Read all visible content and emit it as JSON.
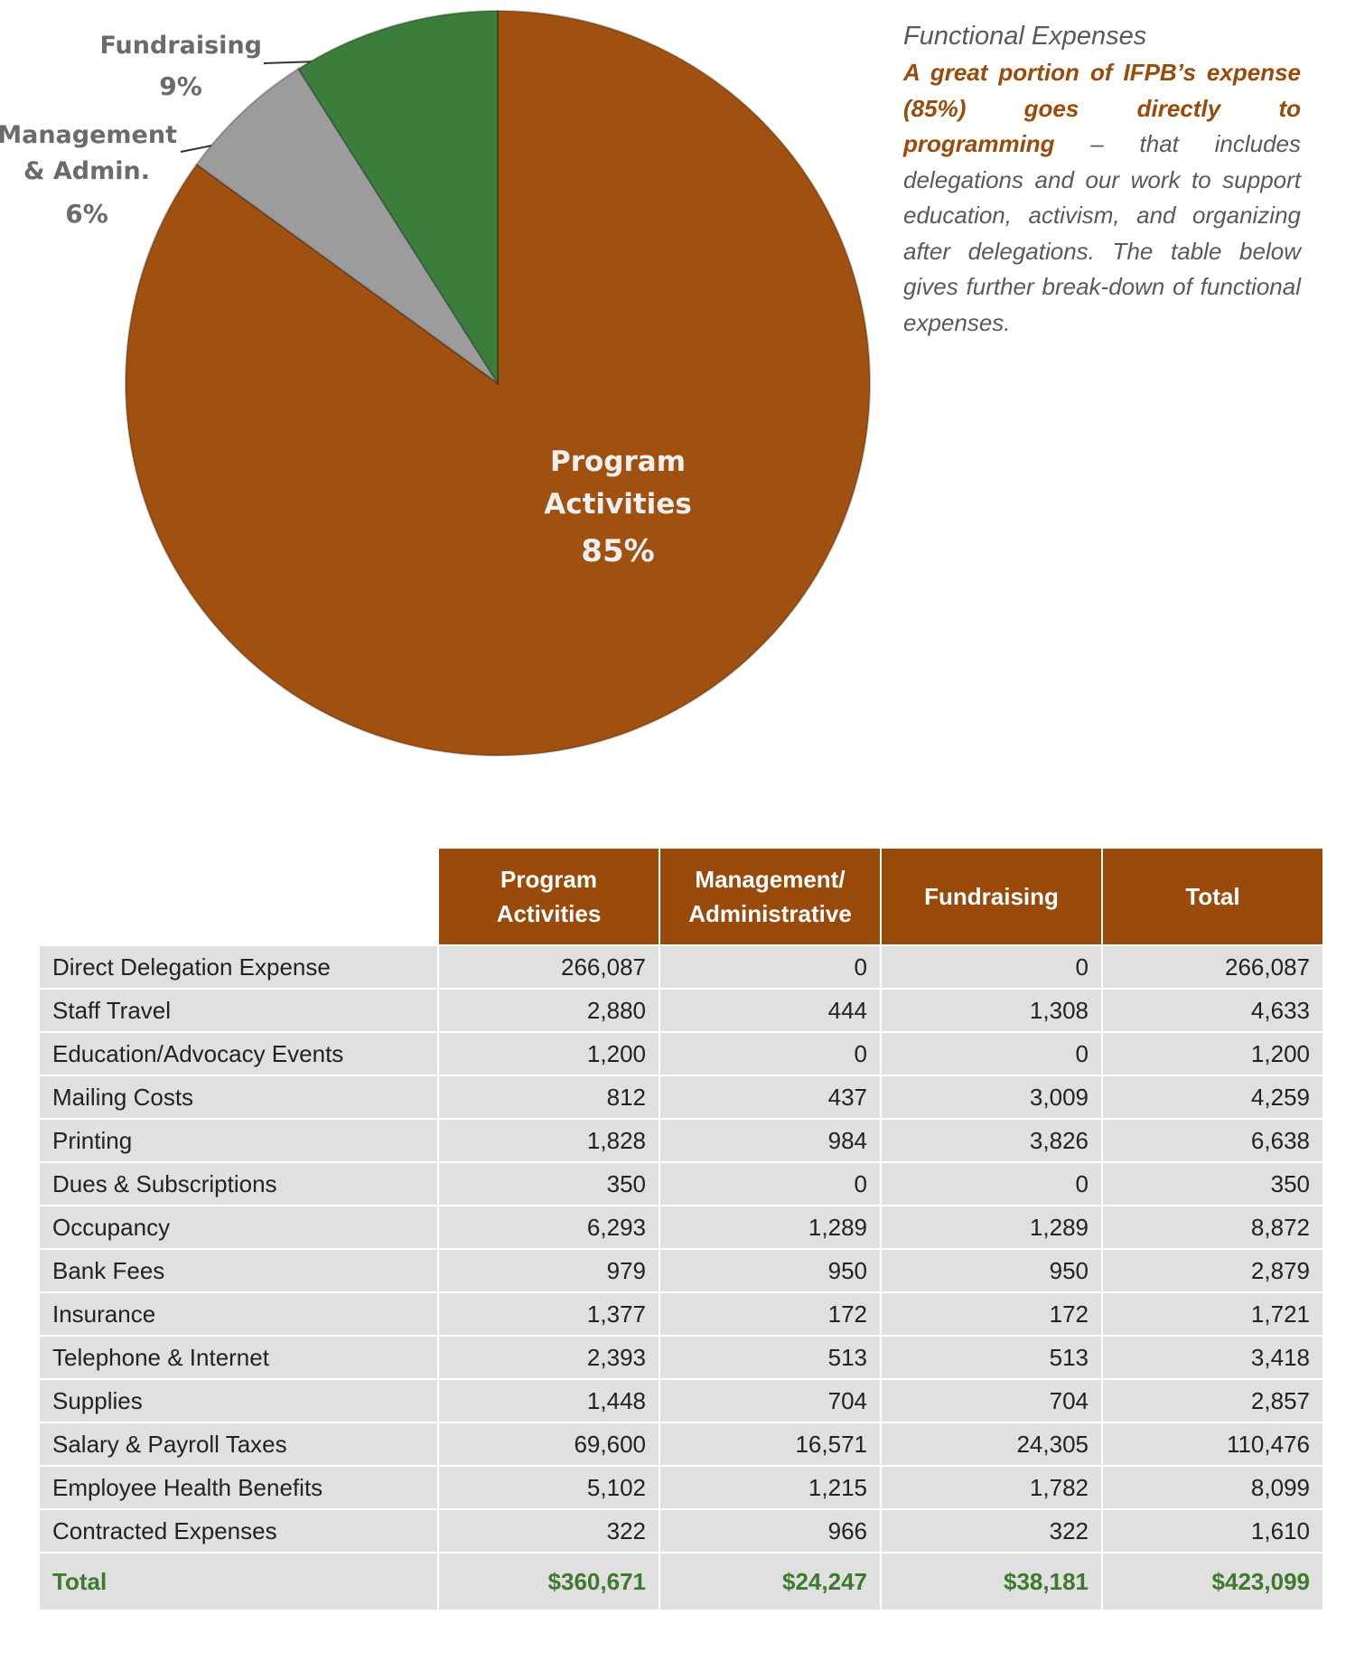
{
  "chart_data": {
    "type": "pie",
    "categories": [
      "Program Activities",
      "Management & Admin.",
      "Fundraising"
    ],
    "values": [
      85,
      6,
      9
    ],
    "value_labels": [
      "85%",
      "6%",
      "9%"
    ],
    "colors": [
      "#a0500f",
      "#9c9c9c",
      "#3b7d3b"
    ]
  },
  "side": {
    "title": "Functional Expenses",
    "lead": "A great portion of IFPB’s expense (85%) goes directly to programming",
    "rest": " – that includes delegations and our work to support education, activism, and organizing after delegations. The table below gives further break-down of functional expenses."
  },
  "table": {
    "header": [
      "Program Activities",
      "Management/ Administrative",
      "Fundraising",
      "Total"
    ],
    "rows": [
      [
        "Direct Delegation Expense",
        "266,087",
        "0",
        "0",
        "266,087"
      ],
      [
        "Staff Travel",
        "2,880",
        "444",
        "1,308",
        "4,633"
      ],
      [
        "Education/Advocacy Events",
        "1,200",
        "0",
        "0",
        "1,200"
      ],
      [
        "Mailing Costs",
        "812",
        "437",
        "3,009",
        "4,259"
      ],
      [
        "Printing",
        "1,828",
        "984",
        "3,826",
        "6,638"
      ],
      [
        "Dues & Subscriptions",
        "350",
        "0",
        "0",
        "350"
      ],
      [
        "Occupancy",
        "6,293",
        "1,289",
        "1,289",
        "8,872"
      ],
      [
        "Bank Fees",
        "979",
        "950",
        "950",
        "2,879"
      ],
      [
        "Insurance",
        "1,377",
        "172",
        "172",
        "1,721"
      ],
      [
        "Telephone & Internet",
        "2,393",
        "513",
        "513",
        "3,418"
      ],
      [
        "Supplies",
        "1,448",
        "704",
        "704",
        "2,857"
      ],
      [
        "Salary & Payroll Taxes",
        "69,600",
        "16,571",
        "24,305",
        "110,476"
      ],
      [
        "Employee Health Benefits",
        "5,102",
        "1,215",
        "1,782",
        "8,099"
      ],
      [
        "Contracted Expenses",
        "322",
        "966",
        "322",
        "1,610"
      ]
    ],
    "total": [
      "Total",
      "$360,671",
      "$24,247",
      "$38,181",
      "$423,099"
    ]
  }
}
